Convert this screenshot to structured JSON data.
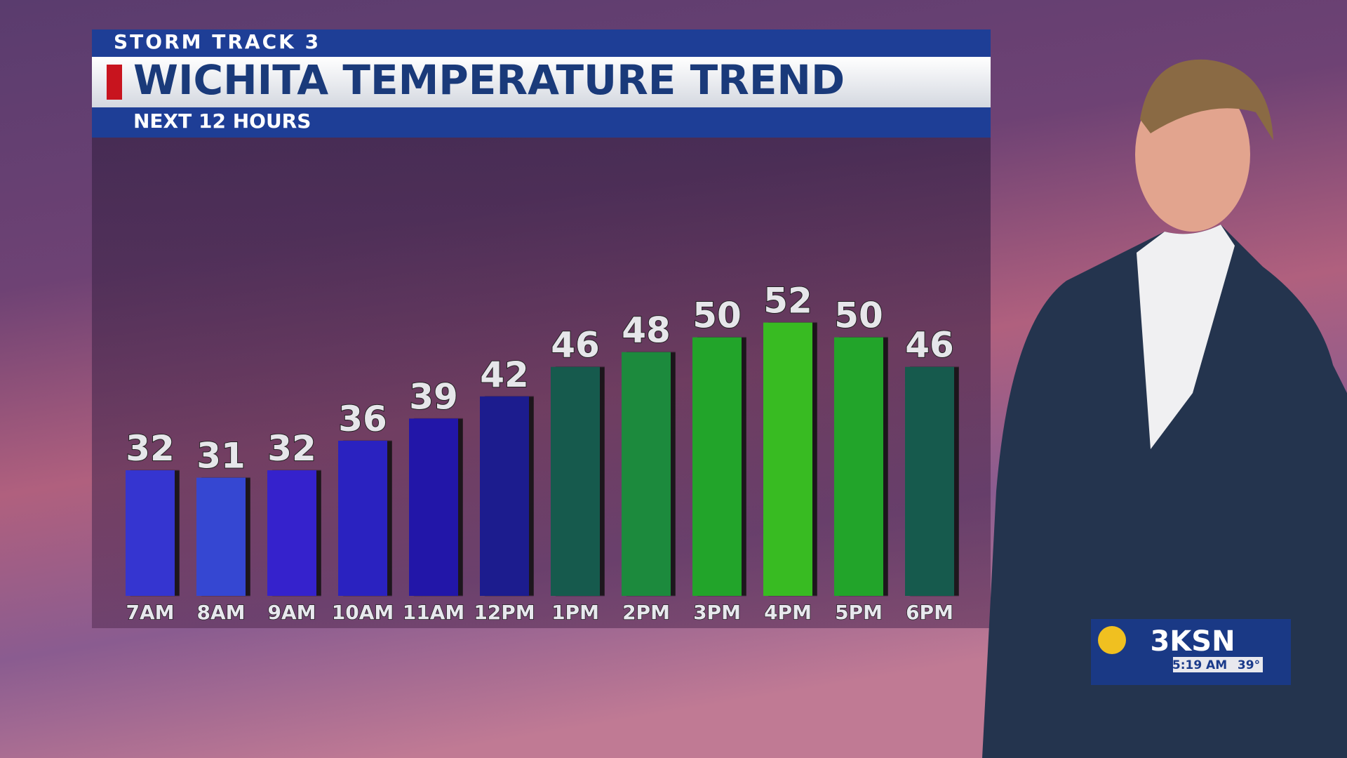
{
  "chart_data": {
    "type": "bar",
    "supertitle": "STORM TRACK 3",
    "title": "WICHITA TEMPERATURE TREND",
    "subtitle": "NEXT 12 HOURS",
    "categories": [
      "7AM",
      "8AM",
      "9AM",
      "10AM",
      "11AM",
      "12PM",
      "1PM",
      "2PM",
      "3PM",
      "4PM",
      "5PM",
      "6PM"
    ],
    "values": [
      32,
      31,
      32,
      36,
      39,
      42,
      46,
      48,
      50,
      52,
      50,
      46
    ],
    "colors": [
      "#3434d0",
      "#3646d2",
      "#3424cc",
      "#2c20c0",
      "#2418a8",
      "#1e1e8e",
      "#175a4e",
      "#1c8a3c",
      "#22a42c",
      "#38bb22",
      "#22a42c",
      "#175a4e"
    ],
    "ylim": [
      15,
      55
    ]
  },
  "station_bug": {
    "logo": "3KSN",
    "time": "5:19 AM",
    "temperature": "39°"
  }
}
